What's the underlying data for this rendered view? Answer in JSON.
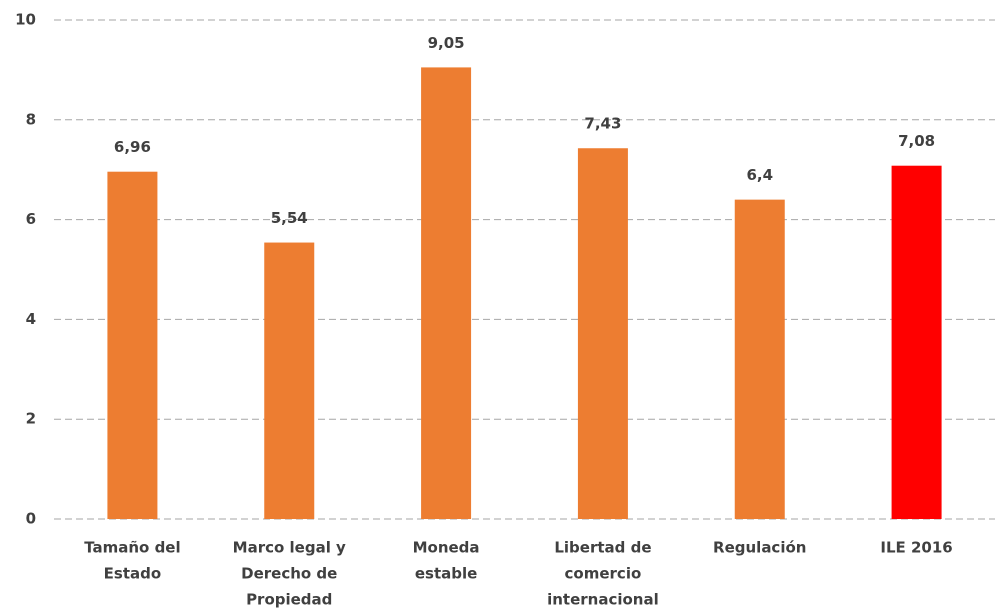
{
  "chart_data": {
    "type": "bar",
    "categories": [
      [
        "Tamaño del",
        "Estado"
      ],
      [
        "Marco legal y",
        "Derecho de",
        "Propiedad"
      ],
      [
        "Moneda",
        "estable"
      ],
      [
        "Libertad de",
        "comercio",
        "internacional"
      ],
      [
        "Regulación"
      ],
      [
        "ILE 2016"
      ]
    ],
    "values": [
      6.96,
      5.54,
      9.05,
      7.43,
      6.4,
      7.08
    ],
    "value_labels": [
      "6,96",
      "5,54",
      "9,05",
      "7,43",
      "6,4",
      "7,08"
    ],
    "colors": [
      "#ed7d31",
      "#ed7d31",
      "#ed7d31",
      "#ed7d31",
      "#ed7d31",
      "#ff0000"
    ],
    "ylim": [
      0,
      10
    ],
    "yticks": [
      0,
      2,
      4,
      6,
      8,
      10
    ],
    "grid": true
  }
}
